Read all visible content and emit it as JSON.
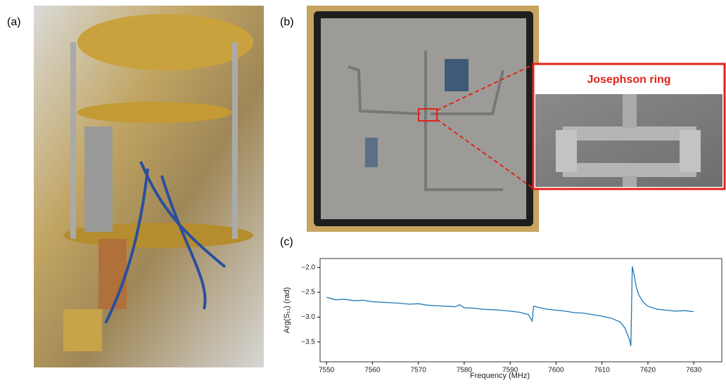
{
  "panel_labels": [
    "(a)",
    "(b)",
    "(c)"
  ],
  "inset_label": "Josephson ring",
  "chart_data": {
    "type": "line",
    "xlabel": "Frequency (MHz)",
    "ylabel": "Arg(S₁₁) (rad)",
    "color": "#1f77b4",
    "x": [
      7550,
      7552,
      7554,
      7556,
      7558,
      7560,
      7562,
      7564,
      7566,
      7568,
      7570,
      7572,
      7574,
      7576,
      7578,
      7579,
      7580,
      7582,
      7584,
      7586,
      7588,
      7590,
      7592,
      7594,
      7594.8,
      7595.1,
      7596,
      7598,
      7600,
      7602,
      7604,
      7606,
      7608,
      7610,
      7612,
      7614,
      7615,
      7616,
      7616.3,
      7616.6,
      7617,
      7617.5,
      7618,
      7619,
      7620,
      7622,
      7624,
      7626,
      7628,
      7630
    ],
    "values": [
      -2.6,
      -2.65,
      -2.64,
      -2.67,
      -2.66,
      -2.69,
      -2.7,
      -2.71,
      -2.72,
      -2.74,
      -2.73,
      -2.76,
      -2.77,
      -2.78,
      -2.79,
      -2.75,
      -2.81,
      -2.82,
      -2.84,
      -2.85,
      -2.86,
      -2.88,
      -2.9,
      -2.95,
      -3.08,
      -2.78,
      -2.8,
      -2.84,
      -2.86,
      -2.88,
      -2.91,
      -2.92,
      -2.95,
      -2.98,
      -3.02,
      -3.1,
      -3.22,
      -3.45,
      -3.58,
      -1.98,
      -2.15,
      -2.4,
      -2.55,
      -2.7,
      -2.78,
      -2.84,
      -2.86,
      -2.88,
      -2.87,
      -2.89
    ],
    "xlim": [
      7548.6,
      7636.1
    ],
    "ylim": [
      -3.9,
      -1.82
    ],
    "xticks": [
      7550,
      7560,
      7570,
      7580,
      7590,
      7600,
      7610,
      7620,
      7630
    ],
    "yticks": [
      {
        "value": -3.5,
        "label": "−3.5"
      },
      {
        "value": -3.0,
        "label": "−3.0"
      },
      {
        "value": -2.5,
        "label": "−2.5"
      },
      {
        "value": -2.0,
        "label": "−2.0"
      }
    ]
  }
}
